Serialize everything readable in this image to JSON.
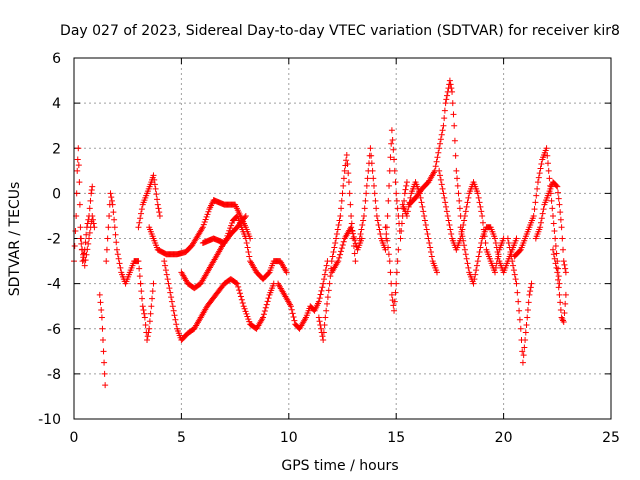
{
  "chart_data": {
    "type": "scatter",
    "title": "Day 027 of 2023, Sidereal Day-to-day VTEC variation (SDTVAR) for receiver kir8",
    "xlabel": "GPS time / hours",
    "ylabel": "SDTVAR / TECUs",
    "xlim": [
      0,
      25
    ],
    "ylim": [
      -10,
      6
    ],
    "xticks": [
      0,
      5,
      10,
      15,
      20,
      25
    ],
    "yticks": [
      -10,
      -8,
      -6,
      -4,
      -2,
      0,
      2,
      4,
      6
    ],
    "grid": true,
    "marker": "+",
    "series": [
      {
        "name": "SDTVAR",
        "color": "#ff0000",
        "segments": [
          [
            [
              0.0,
              -3.0
            ],
            [
              0.1,
              -1.0
            ],
            [
              0.15,
              1.0
            ],
            [
              0.2,
              2.0
            ],
            [
              0.25,
              0.5
            ],
            [
              0.3,
              -1.5
            ],
            [
              0.4,
              -3.0
            ],
            [
              0.5,
              -2.5
            ],
            [
              0.6,
              -1.5
            ],
            [
              0.7,
              -1.0
            ],
            [
              0.8,
              0.0
            ],
            [
              0.85,
              0.3
            ]
          ],
          [
            [
              0.3,
              -2.0
            ],
            [
              0.5,
              -3.2
            ],
            [
              0.7,
              -2.0
            ],
            [
              0.85,
              -1.0
            ],
            [
              0.95,
              -1.5
            ]
          ],
          [
            [
              1.2,
              -4.5
            ],
            [
              1.3,
              -5.5
            ],
            [
              1.35,
              -6.5
            ],
            [
              1.4,
              -7.5
            ],
            [
              1.45,
              -8.5
            ]
          ],
          [
            [
              1.5,
              -3.0
            ],
            [
              1.6,
              -1.5
            ],
            [
              1.7,
              0.0
            ],
            [
              1.8,
              -0.5
            ],
            [
              1.9,
              -1.5
            ],
            [
              2.0,
              -2.5
            ],
            [
              2.2,
              -3.5
            ],
            [
              2.4,
              -4.0
            ],
            [
              2.6,
              -3.5
            ],
            [
              2.8,
              -3.0
            ],
            [
              3.0,
              -3.0
            ],
            [
              3.1,
              -4.0
            ]
          ],
          [
            [
              3.1,
              -4.0
            ],
            [
              3.2,
              -5.0
            ],
            [
              3.3,
              -5.5
            ],
            [
              3.4,
              -6.5
            ],
            [
              3.5,
              -6.0
            ],
            [
              3.6,
              -5.0
            ],
            [
              3.7,
              -4.0
            ]
          ],
          [
            [
              3.0,
              -1.5
            ],
            [
              3.2,
              -0.5
            ],
            [
              3.4,
              0.0
            ],
            [
              3.6,
              0.5
            ],
            [
              3.7,
              0.8
            ],
            [
              3.8,
              0.2
            ],
            [
              3.9,
              -0.5
            ],
            [
              4.0,
              -1.0
            ]
          ],
          [
            [
              3.5,
              -1.5
            ],
            [
              3.7,
              -2.0
            ],
            [
              3.9,
              -2.5
            ],
            [
              4.3,
              -2.7
            ],
            [
              4.8,
              -2.7
            ],
            [
              5.2,
              -2.6
            ],
            [
              5.5,
              -2.3
            ],
            [
              6.0,
              -1.5
            ],
            [
              6.3,
              -0.7
            ],
            [
              6.5,
              -0.3
            ],
            [
              7.0,
              -0.5
            ],
            [
              7.5,
              -0.5
            ],
            [
              8.0,
              -1.5
            ],
            [
              8.2,
              -2.0
            ]
          ],
          [
            [
              4.2,
              -3.0
            ],
            [
              4.4,
              -4.0
            ],
            [
              4.6,
              -5.0
            ],
            [
              4.8,
              -6.0
            ],
            [
              5.0,
              -6.5
            ],
            [
              5.3,
              -6.2
            ],
            [
              5.6,
              -6.0
            ],
            [
              5.9,
              -5.5
            ],
            [
              6.2,
              -5.0
            ],
            [
              6.6,
              -4.5
            ],
            [
              7.0,
              -4.0
            ],
            [
              7.3,
              -3.8
            ],
            [
              7.6,
              -4.0
            ],
            [
              7.9,
              -5.0
            ],
            [
              8.2,
              -5.8
            ],
            [
              8.5,
              -6.0
            ],
            [
              8.8,
              -5.5
            ],
            [
              9.1,
              -4.5
            ],
            [
              9.3,
              -4.0
            ]
          ],
          [
            [
              5.0,
              -3.5
            ],
            [
              5.3,
              -4.0
            ],
            [
              5.6,
              -4.2
            ],
            [
              5.9,
              -4.0
            ],
            [
              6.2,
              -3.5
            ],
            [
              6.5,
              -3.0
            ],
            [
              6.8,
              -2.5
            ],
            [
              7.1,
              -2.0
            ],
            [
              7.4,
              -1.2
            ],
            [
              7.6,
              -1.0
            ],
            [
              7.8,
              -1.5
            ],
            [
              8.0,
              -2.0
            ],
            [
              8.2,
              -3.0
            ],
            [
              8.5,
              -3.5
            ],
            [
              8.8,
              -3.8
            ],
            [
              9.1,
              -3.5
            ],
            [
              9.3,
              -3.0
            ],
            [
              9.6,
              -3.0
            ],
            [
              9.9,
              -3.5
            ]
          ],
          [
            [
              6.0,
              -2.2
            ],
            [
              6.5,
              -2.0
            ],
            [
              7.0,
              -2.2
            ],
            [
              7.3,
              -1.8
            ],
            [
              7.6,
              -1.5
            ],
            [
              8.0,
              -1.0
            ]
          ],
          [
            [
              9.5,
              -4.0
            ],
            [
              9.8,
              -4.5
            ],
            [
              10.1,
              -5.0
            ],
            [
              10.3,
              -5.8
            ],
            [
              10.5,
              -6.0
            ],
            [
              10.8,
              -5.5
            ],
            [
              11.0,
              -5.0
            ],
            [
              11.2,
              -5.2
            ],
            [
              11.4,
              -4.8
            ],
            [
              11.6,
              -4.0
            ],
            [
              11.8,
              -3.0
            ]
          ],
          [
            [
              11.4,
              -5.5
            ],
            [
              11.5,
              -6.0
            ],
            [
              11.6,
              -6.5
            ],
            [
              11.7,
              -5.5
            ],
            [
              11.9,
              -4.0
            ],
            [
              12.0,
              -3.0
            ],
            [
              12.2,
              -2.0
            ],
            [
              12.4,
              -1.0
            ],
            [
              12.5,
              0.0
            ],
            [
              12.6,
              1.0
            ],
            [
              12.7,
              1.7
            ],
            [
              12.8,
              0.5
            ],
            [
              12.9,
              -1.0
            ],
            [
              13.0,
              -2.0
            ],
            [
              13.1,
              -3.0
            ]
          ],
          [
            [
              12.0,
              -3.5
            ],
            [
              12.3,
              -3.0
            ],
            [
              12.6,
              -2.0
            ],
            [
              12.9,
              -1.5
            ],
            [
              13.2,
              -2.5
            ],
            [
              13.4,
              -2.0
            ]
          ],
          [
            [
              13.3,
              -2.0
            ],
            [
              13.5,
              -1.0
            ],
            [
              13.6,
              0.0
            ],
            [
              13.7,
              1.0
            ],
            [
              13.8,
              2.0
            ],
            [
              13.9,
              1.0
            ],
            [
              14.0,
              0.0
            ],
            [
              14.1,
              -1.0
            ],
            [
              14.3,
              -2.0
            ],
            [
              14.5,
              -2.5
            ],
            [
              14.6,
              -1.0
            ],
            [
              14.7,
              1.0
            ],
            [
              14.8,
              2.8
            ],
            [
              14.9,
              1.5
            ],
            [
              15.0,
              0.0
            ],
            [
              15.1,
              -1.0
            ],
            [
              15.2,
              -2.0
            ],
            [
              15.3,
              -1.0
            ],
            [
              15.4,
              0.0
            ],
            [
              15.5,
              0.5
            ]
          ],
          [
            [
              14.5,
              -1.5
            ],
            [
              14.7,
              -3.0
            ],
            [
              14.8,
              -4.5
            ],
            [
              14.9,
              -5.2
            ],
            [
              15.0,
              -4.0
            ],
            [
              15.1,
              -2.5
            ]
          ],
          [
            [
              15.3,
              -0.5
            ],
            [
              15.5,
              -1.0
            ],
            [
              15.7,
              0.0
            ],
            [
              15.9,
              0.5
            ],
            [
              16.1,
              0.0
            ],
            [
              16.3,
              -1.0
            ],
            [
              16.5,
              -2.0
            ],
            [
              16.7,
              -3.0
            ],
            [
              16.9,
              -3.5
            ]
          ],
          [
            [
              15.6,
              -0.5
            ],
            [
              15.9,
              -0.2
            ],
            [
              16.2,
              0.2
            ],
            [
              16.5,
              0.5
            ],
            [
              16.8,
              1.0
            ],
            [
              17.0,
              2.0
            ],
            [
              17.2,
              3.0
            ],
            [
              17.3,
              4.0
            ],
            [
              17.4,
              4.5
            ],
            [
              17.5,
              5.0
            ],
            [
              17.6,
              4.5
            ],
            [
              17.7,
              3.0
            ],
            [
              17.8,
              1.0
            ],
            [
              17.9,
              0.0
            ],
            [
              18.0,
              -1.0
            ]
          ],
          [
            [
              17.0,
              1.0
            ],
            [
              17.2,
              0.0
            ],
            [
              17.4,
              -1.0
            ],
            [
              17.6,
              -2.0
            ],
            [
              17.8,
              -2.5
            ],
            [
              18.0,
              -2.0
            ],
            [
              18.2,
              -1.0
            ],
            [
              18.4,
              0.0
            ],
            [
              18.6,
              0.5
            ],
            [
              18.8,
              0.0
            ],
            [
              19.0,
              -1.0
            ],
            [
              19.2,
              -2.5
            ],
            [
              19.4,
              -3.0
            ],
            [
              19.6,
              -3.5
            ],
            [
              19.8,
              -2.5
            ],
            [
              20.0,
              -2.0
            ]
          ],
          [
            [
              18.0,
              -1.5
            ],
            [
              18.2,
              -2.5
            ],
            [
              18.4,
              -3.5
            ],
            [
              18.6,
              -4.0
            ],
            [
              18.8,
              -3.0
            ],
            [
              19.0,
              -2.0
            ],
            [
              19.2,
              -1.5
            ],
            [
              19.4,
              -1.5
            ],
            [
              19.6,
              -2.0
            ],
            [
              19.8,
              -3.0
            ],
            [
              20.0,
              -3.5
            ],
            [
              20.2,
              -3.0
            ],
            [
              20.4,
              -2.5
            ],
            [
              20.6,
              -2.0
            ]
          ],
          [
            [
              20.2,
              -2.0
            ],
            [
              20.4,
              -3.0
            ],
            [
              20.6,
              -4.0
            ],
            [
              20.8,
              -6.0
            ],
            [
              20.9,
              -7.5
            ],
            [
              21.0,
              -6.5
            ],
            [
              21.1,
              -5.5
            ],
            [
              21.2,
              -4.5
            ],
            [
              21.3,
              -4.0
            ]
          ],
          [
            [
              20.5,
              -2.8
            ],
            [
              20.8,
              -2.5
            ],
            [
              21.0,
              -2.0
            ],
            [
              21.2,
              -1.5
            ],
            [
              21.4,
              -1.0
            ],
            [
              21.6,
              0.5
            ],
            [
              21.8,
              1.5
            ],
            [
              22.0,
              2.0
            ],
            [
              22.1,
              1.0
            ],
            [
              22.2,
              0.0
            ],
            [
              22.3,
              -1.0
            ],
            [
              22.4,
              -2.0
            ],
            [
              22.5,
              -3.0
            ],
            [
              22.6,
              -4.0
            ]
          ],
          [
            [
              21.5,
              -2.0
            ],
            [
              21.7,
              -1.5
            ],
            [
              21.9,
              -0.5
            ],
            [
              22.1,
              0.0
            ],
            [
              22.3,
              0.5
            ],
            [
              22.5,
              0.3
            ],
            [
              22.6,
              -0.5
            ],
            [
              22.7,
              -1.5
            ],
            [
              22.8,
              -3.0
            ],
            [
              22.9,
              -3.5
            ]
          ],
          [
            [
              22.3,
              -2.5
            ],
            [
              22.5,
              -3.5
            ],
            [
              22.6,
              -4.5
            ],
            [
              22.7,
              -5.5
            ],
            [
              22.8,
              -5.7
            ],
            [
              22.9,
              -4.5
            ]
          ]
        ]
      }
    ]
  }
}
